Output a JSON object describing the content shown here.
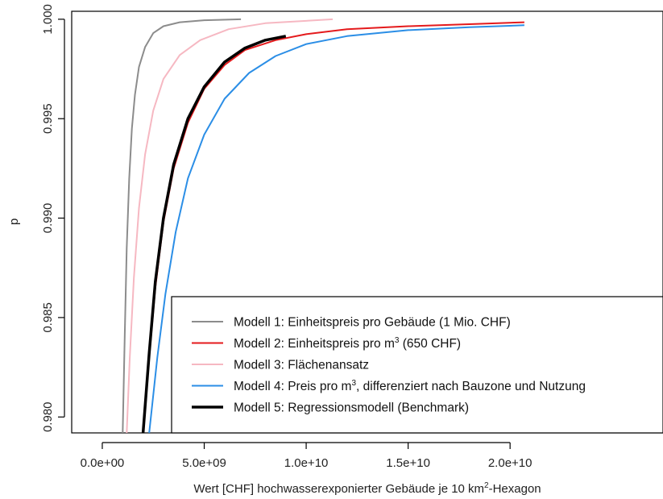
{
  "chart_data": {
    "type": "line",
    "title": "",
    "xlabel_parts": {
      "before": "Wert [CHF] hochwasserexponierter Gebäude je 10 km",
      "sup": "2",
      "after": "-Hexagon"
    },
    "ylabel": "p",
    "xlim": [
      -1500000000.0,
      27500000000.0
    ],
    "ylim": [
      0.9792,
      1.0004
    ],
    "x_ticks": [
      {
        "value": 0,
        "label": "0.0e+00"
      },
      {
        "value": 5000000000.0,
        "label": "5.0e+09"
      },
      {
        "value": 10000000000.0,
        "label": "1.0e+10"
      },
      {
        "value": 15000000000.0,
        "label": "1.5e+10"
      },
      {
        "value": 20000000000.0,
        "label": "2.0e+10"
      }
    ],
    "y_ticks": [
      {
        "value": 0.98,
        "label": "0.980"
      },
      {
        "value": 0.985,
        "label": "0.985"
      },
      {
        "value": 0.99,
        "label": "0.990"
      },
      {
        "value": 0.995,
        "label": "0.995"
      },
      {
        "value": 1.0,
        "label": "1.000"
      }
    ],
    "legend_position": "bottom-right",
    "grid": false,
    "series": [
      {
        "name": "Modell 1: Einheitspreis pro Gebäude (1 Mio. CHF)",
        "color": "#8c8c8c",
        "width": 2,
        "points": [
          [
            1000000000.0,
            0.9792
          ],
          [
            1100000000.0,
            0.984
          ],
          [
            1200000000.0,
            0.9885
          ],
          [
            1320000000.0,
            0.992
          ],
          [
            1450000000.0,
            0.9945
          ],
          [
            1600000000.0,
            0.9962
          ],
          [
            1800000000.0,
            0.9976
          ],
          [
            2100000000.0,
            0.9986
          ],
          [
            2500000000.0,
            0.9993
          ],
          [
            3000000000.0,
            0.99965
          ],
          [
            3800000000.0,
            0.99985
          ],
          [
            5000000000.0,
            0.99995
          ],
          [
            6800000000.0,
            1.0
          ]
        ]
      },
      {
        "name": "Modell 2: Einheitspreis pro m³ (650 CHF)",
        "legend_parts": {
          "before": "Modell 2: Einheitspreis pro m",
          "sup": "3",
          "after": " (650 CHF)"
        },
        "color": "#e41a1c",
        "width": 2,
        "points": [
          [
            2000000000.0,
            0.9792
          ],
          [
            2300000000.0,
            0.983
          ],
          [
            2600000000.0,
            0.9865
          ],
          [
            3000000000.0,
            0.9898
          ],
          [
            3500000000.0,
            0.9925
          ],
          [
            4200000000.0,
            0.9948
          ],
          [
            5000000000.0,
            0.9965
          ],
          [
            6000000000.0,
            0.9977
          ],
          [
            7000000000.0,
            0.99845
          ],
          [
            8500000000.0,
            0.99895
          ],
          [
            10000000000.0,
            0.99925
          ],
          [
            12000000000.0,
            0.9995
          ],
          [
            15000000000.0,
            0.99965
          ],
          [
            18000000000.0,
            0.99975
          ],
          [
            20700000000.0,
            0.99985
          ]
        ]
      },
      {
        "name": "Modell 3: Flächenansatz",
        "color": "#f6b8c2",
        "width": 2,
        "points": [
          [
            1200000000.0,
            0.9792
          ],
          [
            1350000000.0,
            0.983
          ],
          [
            1550000000.0,
            0.987
          ],
          [
            1800000000.0,
            0.9905
          ],
          [
            2100000000.0,
            0.9932
          ],
          [
            2500000000.0,
            0.9954
          ],
          [
            3000000000.0,
            0.997
          ],
          [
            3800000000.0,
            0.9982
          ],
          [
            4800000000.0,
            0.99895
          ],
          [
            6200000000.0,
            0.9995
          ],
          [
            8000000000.0,
            0.9998
          ],
          [
            11300000000.0,
            1.0
          ]
        ]
      },
      {
        "name": "Modell 4: Preis pro m³, differenziert nach Bauzone und Nutzung",
        "legend_parts": {
          "before": "Modell 4: Preis pro m",
          "sup": "3",
          "after": ", differenziert nach Bauzone und Nutzung"
        },
        "color": "#2b8ee6",
        "width": 2,
        "points": [
          [
            2300000000.0,
            0.9792
          ],
          [
            2700000000.0,
            0.983
          ],
          [
            3100000000.0,
            0.9862
          ],
          [
            3600000000.0,
            0.9893
          ],
          [
            4200000000.0,
            0.992
          ],
          [
            5000000000.0,
            0.9942
          ],
          [
            6000000000.0,
            0.996
          ],
          [
            7200000000.0,
            0.9973
          ],
          [
            8500000000.0,
            0.99815
          ],
          [
            10000000000.0,
            0.99875
          ],
          [
            12000000000.0,
            0.99915
          ],
          [
            15000000000.0,
            0.99945
          ],
          [
            18000000000.0,
            0.9996
          ],
          [
            20700000000.0,
            0.9997
          ]
        ]
      },
      {
        "name": "Modell 5: Regressionsmodell (Benchmark)",
        "color": "#000000",
        "width": 3.5,
        "points": [
          [
            2000000000.0,
            0.9792
          ],
          [
            2300000000.0,
            0.9832
          ],
          [
            2600000000.0,
            0.9868
          ],
          [
            3000000000.0,
            0.99
          ],
          [
            3500000000.0,
            0.9927
          ],
          [
            4200000000.0,
            0.995
          ],
          [
            5000000000.0,
            0.9966
          ],
          [
            6000000000.0,
            0.99785
          ],
          [
            7000000000.0,
            0.99855
          ],
          [
            8000000000.0,
            0.99895
          ],
          [
            9000000000.0,
            0.99915
          ]
        ]
      }
    ]
  }
}
